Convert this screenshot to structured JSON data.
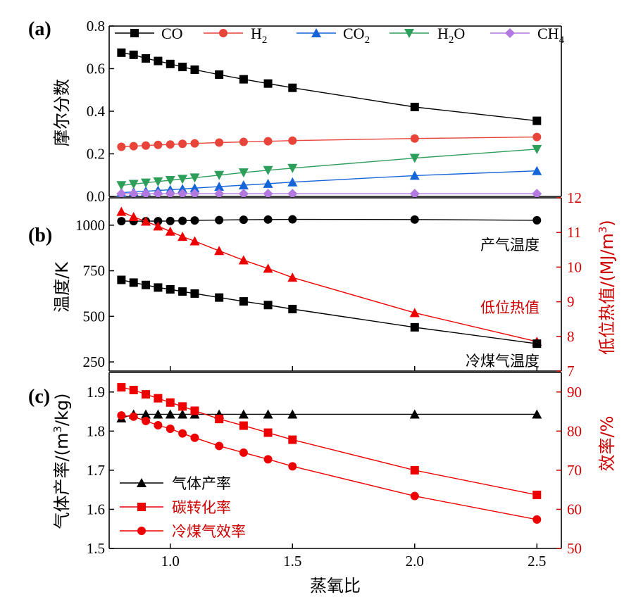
{
  "chart_data": [
    {
      "type": "line",
      "panel_label": "(a)",
      "ylabel": "摩尔分数",
      "ylim": [
        0.0,
        0.8
      ],
      "yticks": [
        "0.0",
        "0.2",
        "0.4",
        "0.6",
        "0.8"
      ],
      "legend_placement": "top",
      "series": [
        {
          "name": "CO",
          "color": "#000000",
          "marker": "square",
          "x": [
            0.8,
            0.85,
            0.9,
            0.95,
            1.0,
            1.05,
            1.1,
            1.2,
            1.3,
            1.4,
            1.5,
            2.0,
            2.5
          ],
          "y": [
            0.675,
            0.665,
            0.648,
            0.636,
            0.622,
            0.608,
            0.595,
            0.572,
            0.55,
            0.53,
            0.51,
            0.42,
            0.355
          ]
        },
        {
          "name": "H2",
          "label_main": "H",
          "label_sub": "2",
          "color": "#e8443a",
          "marker": "circle",
          "x": [
            0.8,
            0.85,
            0.9,
            0.95,
            1.0,
            1.05,
            1.1,
            1.2,
            1.3,
            1.4,
            1.5,
            2.0,
            2.5
          ],
          "y": [
            0.233,
            0.236,
            0.239,
            0.242,
            0.244,
            0.247,
            0.249,
            0.253,
            0.256,
            0.259,
            0.262,
            0.272,
            0.279
          ]
        },
        {
          "name": "CO2",
          "label_main": "CO",
          "label_sub": "2",
          "color": "#1565d8",
          "marker": "triangle-up",
          "x": [
            0.8,
            0.85,
            0.9,
            0.95,
            1.0,
            1.05,
            1.1,
            1.2,
            1.3,
            1.4,
            1.5,
            2.0,
            2.5
          ],
          "y": [
            0.018,
            0.021,
            0.024,
            0.028,
            0.031,
            0.035,
            0.039,
            0.046,
            0.053,
            0.06,
            0.067,
            0.098,
            0.12
          ]
        },
        {
          "name": "H2O",
          "label_main": "H",
          "label_sub": "2",
          "label_tail": "O",
          "color": "#2e9e5b",
          "marker": "triangle-down",
          "x": [
            0.8,
            0.85,
            0.9,
            0.95,
            1.0,
            1.05,
            1.1,
            1.2,
            1.3,
            1.4,
            1.5,
            2.0,
            2.5
          ],
          "y": [
            0.052,
            0.058,
            0.064,
            0.07,
            0.076,
            0.082,
            0.088,
            0.1,
            0.112,
            0.123,
            0.133,
            0.18,
            0.222
          ]
        },
        {
          "name": "CH4",
          "label_main": "CH",
          "label_sub": "4",
          "color": "#b279e0",
          "marker": "diamond",
          "x": [
            0.8,
            0.85,
            0.9,
            0.95,
            1.0,
            1.05,
            1.1,
            1.2,
            1.3,
            1.4,
            1.5,
            2.0,
            2.5
          ],
          "y": [
            0.013,
            0.013,
            0.013,
            0.013,
            0.013,
            0.013,
            0.013,
            0.013,
            0.013,
            0.013,
            0.013,
            0.013,
            0.013
          ]
        }
      ]
    },
    {
      "type": "line",
      "panel_label": "(b)",
      "ylabel": "温度/K",
      "ylim": [
        200,
        1150
      ],
      "yticks": [
        "250",
        "500",
        "750",
        "1000"
      ],
      "y2label": "低位热值/(MJ/m",
      "y2label_sup": "3",
      "y2label_tail": ")",
      "y2lim": [
        7,
        12
      ],
      "y2ticks": [
        "7",
        "8",
        "9",
        "10",
        "11",
        "12"
      ],
      "annotations": [
        "产气温度",
        "低位热值",
        "冷煤气温度"
      ],
      "series": [
        {
          "name": "产气温度",
          "axis": "left",
          "color": "#000000",
          "marker": "circle",
          "x": [
            0.8,
            0.85,
            0.9,
            0.95,
            1.0,
            1.05,
            1.1,
            1.2,
            1.3,
            1.4,
            1.5,
            2.0,
            2.5
          ],
          "y": [
            1022,
            1022,
            1022,
            1022,
            1023,
            1024,
            1026,
            1028,
            1030,
            1031,
            1032,
            1031,
            1027
          ]
        },
        {
          "name": "低位热值",
          "axis": "right",
          "color": "#ee0000",
          "marker": "triangle-up",
          "x": [
            0.8,
            0.85,
            0.9,
            0.95,
            1.0,
            1.05,
            1.1,
            1.2,
            1.3,
            1.4,
            1.5,
            2.0,
            2.5
          ],
          "y": [
            11.6,
            11.45,
            11.32,
            11.18,
            11.03,
            10.88,
            10.75,
            10.47,
            10.2,
            9.96,
            9.7,
            8.68,
            7.85
          ]
        },
        {
          "name": "冷煤气温度",
          "axis": "left",
          "color": "#000000",
          "marker": "square",
          "x": [
            0.8,
            0.85,
            0.9,
            0.95,
            1.0,
            1.05,
            1.1,
            1.2,
            1.3,
            1.4,
            1.5,
            2.0,
            2.5
          ],
          "y": [
            700,
            685,
            672,
            658,
            648,
            636,
            625,
            603,
            582,
            562,
            540,
            440,
            350
          ]
        }
      ]
    },
    {
      "type": "line",
      "panel_label": "(c)",
      "xlabel": "蒸氧比",
      "xlim": [
        0.75,
        2.6
      ],
      "xticks": [
        "1.0",
        "1.5",
        "2.0",
        "2.5"
      ],
      "ylabel": "气体产率/(m",
      "ylabel_sup": "3",
      "ylabel_tail": "/kg)",
      "ylim": [
        1.5,
        1.95
      ],
      "yticks": [
        "1.5",
        "1.6",
        "1.7",
        "1.8",
        "1.9"
      ],
      "y2label": "效率/%",
      "y2lim": [
        50,
        95
      ],
      "y2ticks": [
        "50",
        "60",
        "70",
        "80",
        "90"
      ],
      "legend_placement": "bottom-left",
      "series": [
        {
          "name": "气体产率",
          "axis": "left",
          "color": "#000000",
          "marker": "triangle-up",
          "x": [
            0.8,
            0.85,
            0.9,
            0.95,
            1.0,
            1.05,
            1.1,
            1.2,
            1.3,
            1.4,
            1.5,
            2.0,
            2.5
          ],
          "y": [
            1.833,
            1.843,
            1.843,
            1.843,
            1.843,
            1.843,
            1.843,
            1.843,
            1.843,
            1.843,
            1.843,
            1.843,
            1.843
          ]
        },
        {
          "name": "碳转化率",
          "axis": "right",
          "color": "#ee0000",
          "marker": "square",
          "x": [
            0.8,
            0.85,
            0.9,
            0.95,
            1.0,
            1.05,
            1.1,
            1.2,
            1.3,
            1.4,
            1.5,
            2.0,
            2.5
          ],
          "y": [
            91.2,
            90.5,
            89.4,
            88.4,
            87.3,
            86.3,
            85.2,
            83.1,
            81.4,
            79.6,
            77.8,
            70.0,
            63.7
          ]
        },
        {
          "name": "冷煤气效率",
          "axis": "right",
          "color": "#ee0000",
          "marker": "circle",
          "x": [
            0.8,
            0.85,
            0.9,
            0.95,
            1.0,
            1.05,
            1.1,
            1.2,
            1.3,
            1.4,
            1.5,
            2.0,
            2.5
          ],
          "y": [
            84.0,
            83.7,
            82.6,
            81.5,
            80.6,
            79.4,
            78.3,
            76.2,
            74.5,
            72.8,
            71.0,
            63.4,
            57.4
          ]
        }
      ]
    }
  ]
}
